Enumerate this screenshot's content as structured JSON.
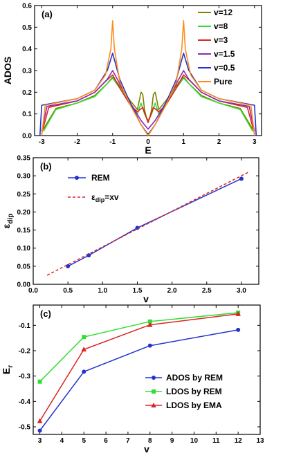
{
  "chart_data": [
    {
      "panel": "(a)",
      "type": "line",
      "xlabel": "E",
      "ylabel": "ADOS",
      "xlim": [
        -3.2,
        3.2
      ],
      "ylim": [
        0,
        0.6
      ],
      "xticks": [
        "-3",
        "-2",
        "-1",
        "0",
        "1",
        "2",
        "3"
      ],
      "yticks": [
        "0.0",
        "0.1",
        "0.2",
        "0.3",
        "0.4",
        "0.5",
        "0.6"
      ],
      "legend_position": "top-right",
      "series": [
        {
          "name": "v=12",
          "color": "#7f7f00",
          "x": [
            -2.95,
            -2.6,
            -2,
            -1.5,
            -1.15,
            -1.0,
            -0.8,
            -0.5,
            -0.3,
            -0.2,
            -0.15,
            -0.1,
            -0.05,
            0,
            0.05,
            0.1,
            0.15,
            0.2,
            0.3,
            0.5,
            0.8,
            1.0,
            1.15,
            1.5,
            2,
            2.6,
            2.95
          ],
          "y": [
            0.03,
            0.125,
            0.15,
            0.185,
            0.24,
            0.27,
            0.23,
            0.16,
            0.12,
            0.2,
            0.19,
            0.12,
            0.085,
            0.07,
            0.085,
            0.12,
            0.19,
            0.2,
            0.12,
            0.16,
            0.23,
            0.27,
            0.24,
            0.185,
            0.15,
            0.125,
            0.03
          ]
        },
        {
          "name": "v=8",
          "color": "#33dd33",
          "x": [
            -2.95,
            -2.6,
            -2,
            -1.5,
            -1.15,
            -1.0,
            -0.8,
            -0.5,
            -0.3,
            -0.2,
            -0.1,
            0,
            0.1,
            0.2,
            0.3,
            0.5,
            0.8,
            1.0,
            1.15,
            1.5,
            2,
            2.6,
            2.95
          ],
          "y": [
            0.02,
            0.12,
            0.15,
            0.18,
            0.24,
            0.265,
            0.22,
            0.15,
            0.1,
            0.15,
            0.1,
            0.065,
            0.1,
            0.15,
            0.1,
            0.15,
            0.22,
            0.265,
            0.24,
            0.18,
            0.15,
            0.12,
            0.02
          ]
        },
        {
          "name": "v=3",
          "color": "#dd2222",
          "x": [
            -3.0,
            -2.8,
            -2,
            -1.5,
            -1.2,
            -1.0,
            -0.8,
            -0.5,
            -0.3,
            -0.15,
            0,
            0.15,
            0.3,
            0.5,
            0.8,
            1.0,
            1.2,
            1.5,
            2,
            2.8,
            3.0
          ],
          "y": [
            0.01,
            0.13,
            0.16,
            0.2,
            0.25,
            0.28,
            0.22,
            0.14,
            0.11,
            0.13,
            0.06,
            0.13,
            0.11,
            0.14,
            0.22,
            0.28,
            0.25,
            0.2,
            0.16,
            0.13,
            0.01
          ]
        },
        {
          "name": "v=1.5",
          "color": "#8a2ab0",
          "x": [
            -3.0,
            -2.85,
            -2,
            -1.5,
            -1.15,
            -1.0,
            -0.8,
            -0.5,
            -0.2,
            0,
            0.2,
            0.5,
            0.8,
            1.0,
            1.15,
            1.5,
            2,
            2.85,
            3.0
          ],
          "y": [
            0.02,
            0.135,
            0.16,
            0.2,
            0.26,
            0.3,
            0.24,
            0.15,
            0.07,
            0.03,
            0.07,
            0.15,
            0.24,
            0.3,
            0.26,
            0.2,
            0.16,
            0.135,
            0.02
          ]
        },
        {
          "name": "v=0.5",
          "color": "#2233cc",
          "x": [
            -3.05,
            -3.0,
            -2,
            -1.5,
            -1.15,
            -1.0,
            -0.8,
            -0.5,
            -0.2,
            0,
            0.2,
            0.5,
            0.8,
            1.0,
            1.15,
            1.5,
            2,
            3.0,
            3.05
          ],
          "y": [
            0.0,
            0.14,
            0.17,
            0.21,
            0.3,
            0.38,
            0.26,
            0.15,
            0.05,
            0.005,
            0.05,
            0.15,
            0.26,
            0.38,
            0.3,
            0.21,
            0.17,
            0.14,
            0.0
          ]
        },
        {
          "name": "Pure",
          "color": "#ff8c1a",
          "x": [
            -3.0,
            -2.9,
            -2,
            -1.5,
            -1.2,
            -1.05,
            -1.0,
            -0.95,
            -0.8,
            -0.5,
            -0.2,
            0,
            0.2,
            0.5,
            0.8,
            0.95,
            1.0,
            1.05,
            1.2,
            1.5,
            2,
            2.9,
            3.0
          ],
          "y": [
            0.0,
            0.14,
            0.17,
            0.21,
            0.28,
            0.4,
            0.53,
            0.4,
            0.25,
            0.14,
            0.05,
            0.0,
            0.05,
            0.14,
            0.25,
            0.4,
            0.53,
            0.4,
            0.28,
            0.21,
            0.17,
            0.14,
            0.0
          ]
        }
      ]
    },
    {
      "panel": "(b)",
      "type": "line",
      "xlabel": "v",
      "ylabel": "εdip",
      "xlim": [
        0,
        3.25
      ],
      "ylim": [
        0,
        0.35
      ],
      "xticks": [
        "0.0",
        "0.5",
        "1.0",
        "1.5",
        "2.0",
        "2.5",
        "3.0"
      ],
      "yticks": [
        "0.00",
        "0.05",
        "0.10",
        "0.15",
        "0.20",
        "0.25",
        "0.30",
        "0.35"
      ],
      "legend_position": "top-left",
      "series": [
        {
          "name": "REM",
          "color": "#2233cc",
          "style": "solid-markers",
          "x": [
            0.5,
            0.8,
            1.5,
            3.0
          ],
          "y": [
            0.05,
            0.08,
            0.156,
            0.292
          ]
        },
        {
          "name": "εdip=xv",
          "color": "#dd2222",
          "style": "dashed",
          "x": [
            0.2,
            3.1
          ],
          "y": [
            0.025,
            0.31
          ]
        }
      ]
    },
    {
      "panel": "(c)",
      "type": "line",
      "xlabel": "v",
      "ylabel": "Er",
      "xlim": [
        2.7,
        13
      ],
      "ylim": [
        -0.53,
        -0.02
      ],
      "xticks": [
        "3",
        "4",
        "5",
        "6",
        "7",
        "8",
        "9",
        "10",
        "11",
        "12",
        "13"
      ],
      "yticks": [
        "-0.5",
        "-0.4",
        "-0.3",
        "-0.2",
        "-0.1"
      ],
      "legend_position": "bottom-right",
      "series": [
        {
          "name": "ADOS by REM",
          "color": "#2233cc",
          "marker": "circle",
          "x": [
            3,
            5,
            8,
            12
          ],
          "y": [
            -0.515,
            -0.283,
            -0.18,
            -0.118
          ]
        },
        {
          "name": "LDOS by REM",
          "color": "#33dd33",
          "marker": "square",
          "x": [
            3,
            5,
            8,
            12
          ],
          "y": [
            -0.322,
            -0.146,
            -0.085,
            -0.05
          ]
        },
        {
          "name": "LDOS by EMA",
          "color": "#dd2222",
          "marker": "triangle",
          "x": [
            3,
            5,
            8,
            12
          ],
          "y": [
            -0.477,
            -0.195,
            -0.098,
            -0.055
          ]
        }
      ]
    }
  ]
}
